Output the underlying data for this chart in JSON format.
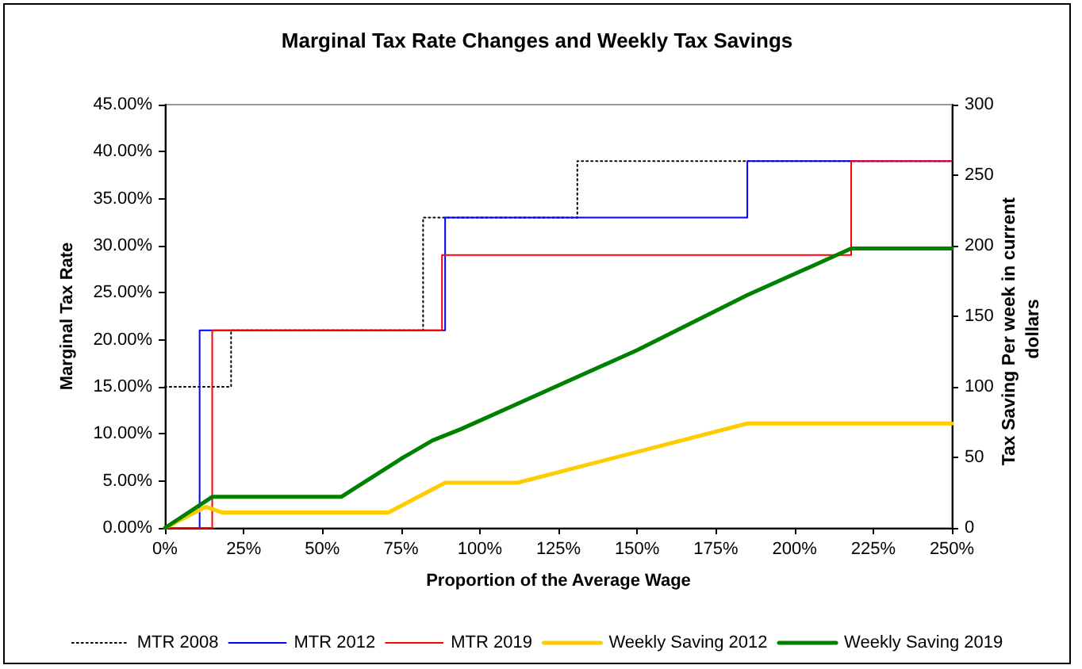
{
  "chart_data": {
    "type": "step",
    "title": "Marginal Tax Rate Changes and Weekly Tax Savings",
    "xlabel": "Proportion of the Average Wage",
    "ylabel": "Marginal Tax Rate",
    "y2label": "Tax Saving Per week in current dollars",
    "xlim": [
      0,
      250
    ],
    "xticks": [
      {
        "value": 0,
        "label": "0%"
      },
      {
        "value": 25,
        "label": "25%"
      },
      {
        "value": 50,
        "label": "50%"
      },
      {
        "value": 75,
        "label": "75%"
      },
      {
        "value": 100,
        "label": "100%"
      },
      {
        "value": 125,
        "label": "125%"
      },
      {
        "value": 150,
        "label": "150%"
      },
      {
        "value": 175,
        "label": "175%"
      },
      {
        "value": 200,
        "label": "200%"
      },
      {
        "value": 225,
        "label": "225%"
      },
      {
        "value": 250,
        "label": "250%"
      }
    ],
    "ylim": [
      0,
      45
    ],
    "yticks": [
      {
        "value": 0,
        "label": "0.00%"
      },
      {
        "value": 5,
        "label": "5.00%"
      },
      {
        "value": 10,
        "label": "10.00%"
      },
      {
        "value": 15,
        "label": "15.00%"
      },
      {
        "value": 20,
        "label": "20.00%"
      },
      {
        "value": 25,
        "label": "25.00%"
      },
      {
        "value": 30,
        "label": "30.00%"
      },
      {
        "value": 35,
        "label": "35.00%"
      },
      {
        "value": 40,
        "label": "40.00%"
      },
      {
        "value": 45,
        "label": "45.00%"
      }
    ],
    "y2lim": [
      0,
      300
    ],
    "y2ticks": [
      0,
      50,
      100,
      150,
      200,
      250,
      300
    ],
    "legend": "bottom",
    "marker": "none",
    "series": [
      {
        "name": "MTR 2008",
        "color": "#000000",
        "line_style": "dotted",
        "x": [
          0,
          21,
          82,
          131,
          250
        ],
        "values": [
          15,
          21,
          33,
          39,
          39
        ]
      },
      {
        "name": "MTR 2012",
        "color": "#0000ff",
        "x": [
          0,
          11,
          89,
          185,
          250
        ],
        "values": [
          0,
          21,
          33,
          39,
          39
        ]
      },
      {
        "name": "MTR 2019",
        "color": "#ff0000",
        "x": [
          0,
          15,
          88,
          218,
          250
        ],
        "values": [
          0,
          21,
          29,
          39,
          39
        ]
      },
      {
        "name": "Weekly Saving 2012",
        "type": "line",
        "axis": "y2",
        "color": "#ffcc00",
        "x": [
          0,
          13,
          18,
          71,
          89,
          112,
          185,
          250
        ],
        "values": [
          0,
          15,
          11,
          11,
          32,
          32,
          74,
          74
        ]
      },
      {
        "name": "Weekly Saving 2019",
        "type": "line",
        "axis": "y2",
        "color": "#008000",
        "x": [
          0,
          15,
          56,
          63,
          75,
          85,
          94,
          150,
          185,
          218,
          250
        ],
        "values": [
          0,
          22,
          22,
          32,
          49,
          62,
          70,
          126,
          165,
          198,
          198
        ]
      }
    ]
  }
}
